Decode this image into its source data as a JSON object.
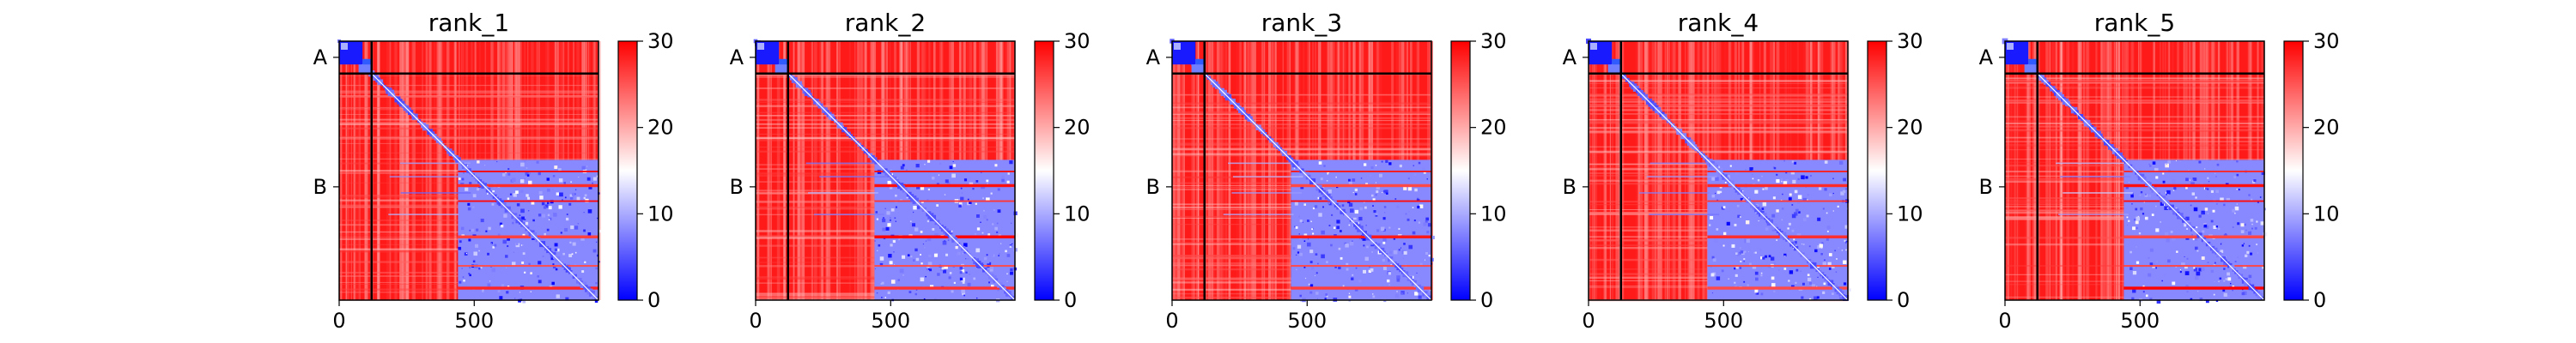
{
  "figure": {
    "description_type": "multi-panel PAE heatmaps",
    "colormap": {
      "low": "#0000ff",
      "mid": "#ffffff",
      "high": "#ff0000"
    }
  },
  "chart_data": [
    {
      "type": "heatmap",
      "title": "rank_1",
      "x_ticks": [
        0,
        500
      ],
      "y_tick_labels": [
        "A",
        "B"
      ],
      "chain_boundary": 120,
      "matrix_size": 960,
      "colorbar": {
        "min": 0,
        "max": 30,
        "ticks": [
          0,
          10,
          20,
          30
        ]
      },
      "regions": {
        "A_A": "low",
        "A_B": "high",
        "B_A": "high",
        "B_B_diagonal": "low",
        "B_B_lower_right_block": "low-mixed",
        "B_B_far": "high"
      }
    },
    {
      "type": "heatmap",
      "title": "rank_2",
      "x_ticks": [
        0,
        500
      ],
      "y_tick_labels": [
        "A",
        "B"
      ],
      "chain_boundary": 120,
      "matrix_size": 960,
      "colorbar": {
        "min": 0,
        "max": 30,
        "ticks": [
          0,
          10,
          20,
          30
        ]
      },
      "regions": {
        "A_A": "low",
        "A_B": "high",
        "B_A": "high",
        "B_B_diagonal": "low",
        "B_B_lower_right_block": "low-mixed",
        "B_B_far": "high"
      }
    },
    {
      "type": "heatmap",
      "title": "rank_3",
      "x_ticks": [
        0,
        500
      ],
      "y_tick_labels": [
        "A",
        "B"
      ],
      "chain_boundary": 120,
      "matrix_size": 960,
      "colorbar": {
        "min": 0,
        "max": 30,
        "ticks": [
          0,
          10,
          20,
          30
        ]
      },
      "regions": {
        "A_A": "low",
        "A_B": "high",
        "B_A": "high",
        "B_B_diagonal": "low",
        "B_B_lower_right_block": "low-mixed",
        "B_B_far": "high"
      }
    },
    {
      "type": "heatmap",
      "title": "rank_4",
      "x_ticks": [
        0,
        500
      ],
      "y_tick_labels": [
        "A",
        "B"
      ],
      "chain_boundary": 120,
      "matrix_size": 960,
      "colorbar": {
        "min": 0,
        "max": 30,
        "ticks": [
          0,
          10,
          20,
          30
        ]
      },
      "regions": {
        "A_A": "low",
        "A_B": "high",
        "B_A": "high",
        "B_B_diagonal": "low",
        "B_B_lower_right_block": "low-mixed",
        "B_B_far": "high"
      }
    },
    {
      "type": "heatmap",
      "title": "rank_5",
      "x_ticks": [
        0,
        500
      ],
      "y_tick_labels": [
        "A",
        "B"
      ],
      "chain_boundary": 120,
      "matrix_size": 960,
      "colorbar": {
        "min": 0,
        "max": 30,
        "ticks": [
          0,
          10,
          20,
          30
        ]
      },
      "regions": {
        "A_A": "low",
        "A_B": "high",
        "B_A": "high",
        "B_B_diagonal": "low",
        "B_B_lower_right_block": "low-mixed",
        "B_B_far": "high"
      }
    }
  ]
}
